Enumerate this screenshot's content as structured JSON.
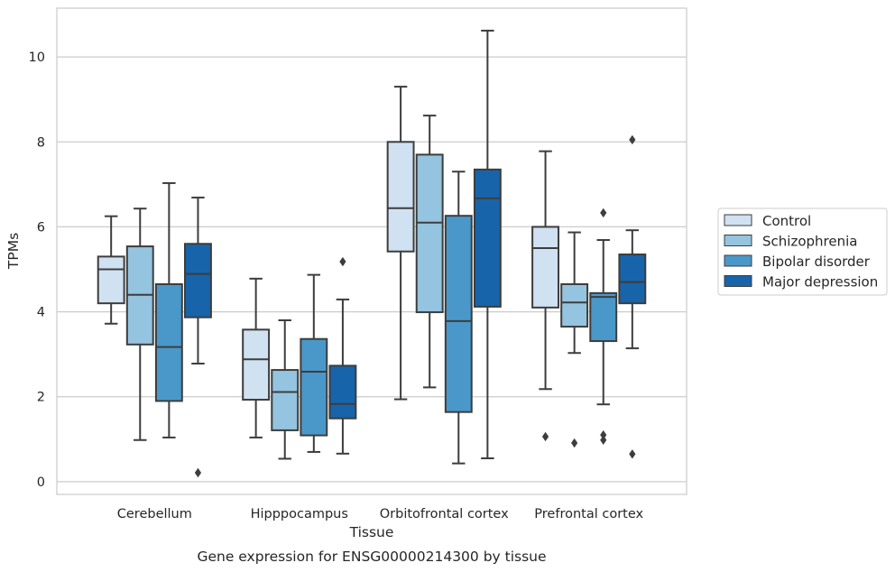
{
  "caption": "Gene expression for ENSG00000214300 by tissue",
  "chart_data": {
    "type": "box",
    "xlabel": "Tissue",
    "ylabel": "TPMs",
    "ylim": [
      -0.3,
      11.15
    ],
    "yticks": [
      0,
      2,
      4,
      6,
      8,
      10
    ],
    "grid": "horizontal",
    "legend_position": "right",
    "categories": [
      "Cerebellum",
      "Hipppocampus",
      "Orbitofrontal cortex",
      "Prefrontal cortex"
    ],
    "series": [
      {
        "name": "Control",
        "color": "#d0e1f2",
        "boxes": [
          {
            "whislo": 3.72,
            "q1": 4.2,
            "med": 5.0,
            "q3": 5.3,
            "whishi": 6.25,
            "fliers": []
          },
          {
            "whislo": 1.04,
            "q1": 1.93,
            "med": 2.88,
            "q3": 3.58,
            "whishi": 4.78,
            "fliers": []
          },
          {
            "whislo": 1.94,
            "q1": 5.42,
            "med": 6.44,
            "q3": 8.0,
            "whishi": 9.3,
            "fliers": []
          },
          {
            "whislo": 2.18,
            "q1": 4.1,
            "med": 5.5,
            "q3": 6.0,
            "whishi": 7.78,
            "fliers": [
              1.06
            ]
          }
        ]
      },
      {
        "name": "Schizophrenia",
        "color": "#94c4df",
        "boxes": [
          {
            "whislo": 0.98,
            "q1": 3.23,
            "med": 4.4,
            "q3": 5.54,
            "whishi": 6.43,
            "fliers": []
          },
          {
            "whislo": 0.54,
            "q1": 1.21,
            "med": 2.11,
            "q3": 2.63,
            "whishi": 3.8,
            "fliers": []
          },
          {
            "whislo": 2.22,
            "q1": 3.99,
            "med": 6.1,
            "q3": 7.7,
            "whishi": 8.62,
            "fliers": []
          },
          {
            "whislo": 3.03,
            "q1": 3.65,
            "med": 4.22,
            "q3": 4.65,
            "whishi": 5.87,
            "fliers": [
              0.91
            ]
          }
        ]
      },
      {
        "name": "Bipolar disorder",
        "color": "#4a98c9",
        "boxes": [
          {
            "whislo": 1.04,
            "q1": 1.9,
            "med": 3.17,
            "q3": 4.65,
            "whishi": 7.03,
            "fliers": []
          },
          {
            "whislo": 0.7,
            "q1": 1.09,
            "med": 2.59,
            "q3": 3.36,
            "whishi": 4.87,
            "fliers": []
          },
          {
            "whislo": 0.43,
            "q1": 1.64,
            "med": 3.78,
            "q3": 6.26,
            "whishi": 7.3,
            "fliers": []
          },
          {
            "whislo": 1.82,
            "q1": 3.31,
            "med": 4.35,
            "q3": 4.44,
            "whishi": 5.69,
            "fliers": [
              6.33,
              1.1,
              0.98
            ]
          }
        ]
      },
      {
        "name": "Major depression",
        "color": "#1764ab",
        "boxes": [
          {
            "whislo": 2.78,
            "q1": 3.87,
            "med": 4.89,
            "q3": 5.6,
            "whishi": 6.69,
            "fliers": [
              0.21
            ]
          },
          {
            "whislo": 0.66,
            "q1": 1.49,
            "med": 1.83,
            "q3": 2.73,
            "whishi": 4.29,
            "fliers": [
              5.18
            ]
          },
          {
            "whislo": 0.55,
            "q1": 4.12,
            "med": 6.67,
            "q3": 7.35,
            "whishi": 10.62,
            "fliers": []
          },
          {
            "whislo": 3.14,
            "q1": 4.2,
            "med": 4.7,
            "q3": 5.35,
            "whishi": 5.92,
            "fliers": [
              8.05,
              0.65
            ]
          }
        ]
      }
    ]
  }
}
